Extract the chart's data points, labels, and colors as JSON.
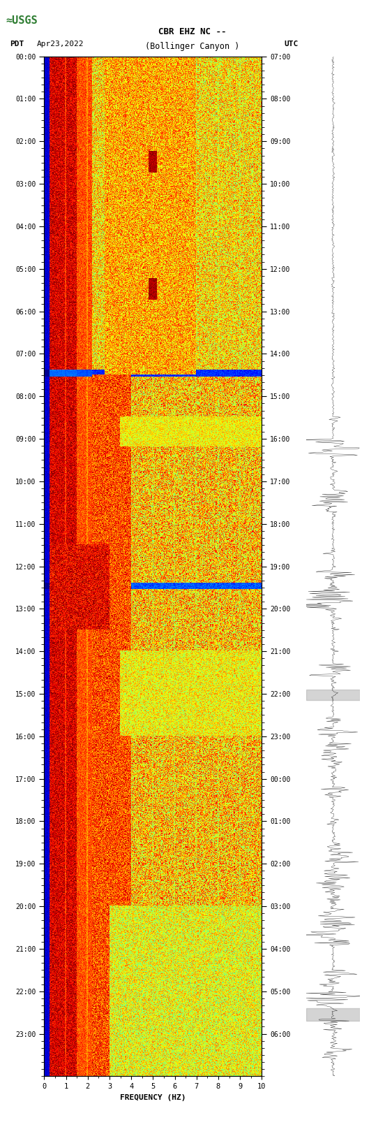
{
  "title_line1": "CBR EHZ NC --",
  "title_line2": "(Bollinger Canyon )",
  "date_label": "Apr23,2022",
  "left_axis_label": "PDT",
  "right_axis_label": "UTC",
  "xlabel": "FREQUENCY (HZ)",
  "freq_min": 0,
  "freq_max": 10,
  "pdt_ticks": [
    "00:00",
    "01:00",
    "02:00",
    "03:00",
    "04:00",
    "05:00",
    "06:00",
    "07:00",
    "08:00",
    "09:00",
    "10:00",
    "11:00",
    "12:00",
    "13:00",
    "14:00",
    "15:00",
    "16:00",
    "17:00",
    "18:00",
    "19:00",
    "20:00",
    "21:00",
    "22:00",
    "23:00"
  ],
  "utc_ticks": [
    "07:00",
    "08:00",
    "09:00",
    "10:00",
    "11:00",
    "12:00",
    "13:00",
    "14:00",
    "15:00",
    "16:00",
    "17:00",
    "18:00",
    "19:00",
    "20:00",
    "21:00",
    "22:00",
    "23:00",
    "00:00",
    "01:00",
    "02:00",
    "03:00",
    "04:00",
    "05:00",
    "06:00"
  ],
  "background_color": "#ffffff",
  "usgs_green": "#2e7d32",
  "freq_ticks": [
    0,
    1,
    2,
    3,
    4,
    5,
    6,
    7,
    8,
    9,
    10
  ],
  "colormap": "jet",
  "n_time": 1400,
  "n_freq": 300,
  "fig_width": 5.52,
  "fig_height": 16.13,
  "dpi": 100
}
